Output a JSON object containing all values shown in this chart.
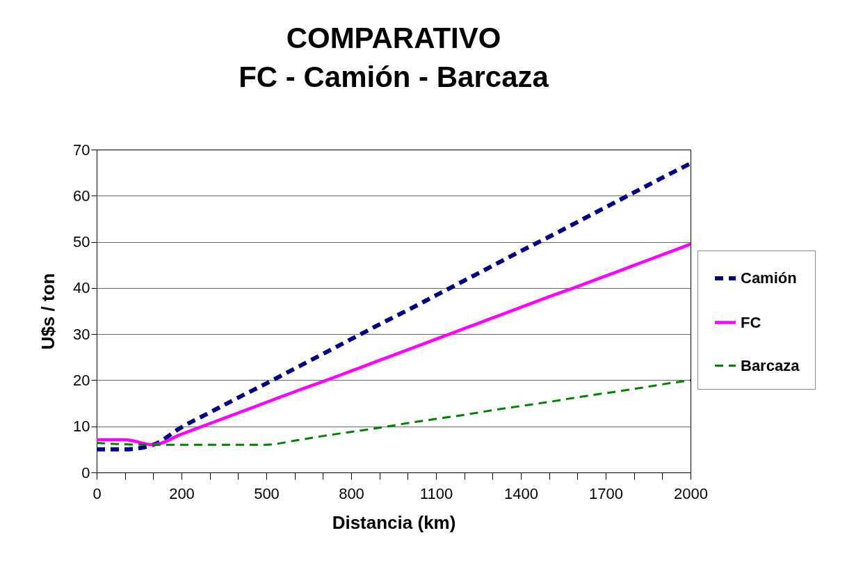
{
  "chart_data": {
    "type": "line",
    "title": "COMPARATIVO\nFC - Camión - Barcaza",
    "xlabel": "Distancia (km)",
    "ylabel": "U$s / ton",
    "categories": [
      "0",
      null,
      null,
      "200",
      null,
      null,
      "500",
      null,
      null,
      "800",
      null,
      null,
      "1100",
      null,
      null,
      "1400",
      null,
      null,
      "1700",
      null,
      null,
      "2000"
    ],
    "series": [
      {
        "name": "Camión",
        "color": "#000080",
        "line_style": "dashed",
        "values": [
          5.0,
          5.0,
          6.0,
          9.8,
          13.0,
          16.2,
          19.3,
          22.5,
          25.7,
          28.9,
          32.1,
          35.2,
          38.4,
          41.6,
          44.8,
          48.0,
          51.1,
          54.3,
          57.5,
          60.7,
          63.9,
          67.0
        ]
      },
      {
        "name": "FC",
        "color": "#ff00ff",
        "line_style": "solid",
        "values": [
          7.1,
          7.1,
          6.0,
          8.3,
          10.6,
          12.9,
          15.2,
          17.5,
          19.7,
          22.0,
          24.3,
          26.6,
          28.9,
          31.2,
          33.5,
          35.8,
          38.1,
          40.3,
          42.6,
          44.9,
          47.2,
          49.5
        ]
      },
      {
        "name": "Barcaza",
        "color": "#008000",
        "line_style": "dashed",
        "values": [
          6.4,
          6.1,
          6.0,
          6.0,
          6.0,
          6.0,
          6.0,
          6.9,
          7.9,
          8.8,
          9.7,
          10.7,
          11.6,
          12.5,
          13.5,
          14.4,
          15.3,
          16.3,
          17.2,
          18.1,
          19.1,
          20.0
        ]
      }
    ],
    "ylim": [
      0,
      70
    ],
    "yticks": [
      0,
      10,
      20,
      30,
      40,
      50,
      60,
      70
    ],
    "grid": "y",
    "legend": "right",
    "marker": "none"
  }
}
